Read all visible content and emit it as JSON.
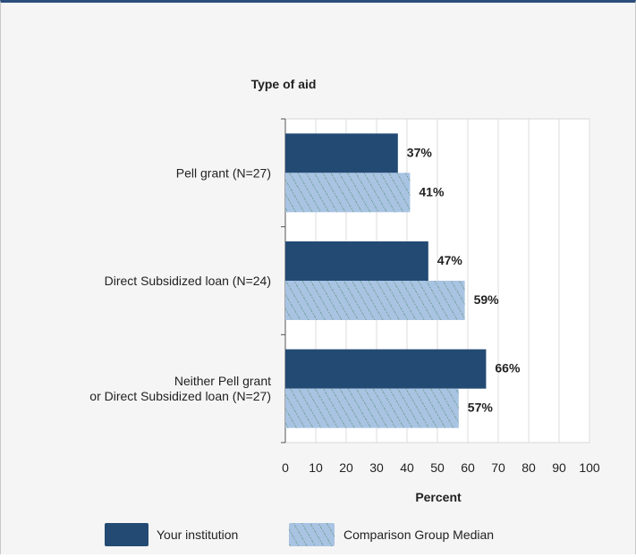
{
  "chart_data": {
    "type": "bar",
    "orientation": "horizontal",
    "title": "Type of aid",
    "xlabel": "Percent",
    "xlim": [
      0,
      100
    ],
    "x_ticks": [
      0,
      10,
      20,
      30,
      40,
      50,
      60,
      70,
      80,
      90,
      100
    ],
    "grid": true,
    "categories": [
      [
        "Pell grant (N=27)"
      ],
      [
        "Direct Subsidized loan (N=24)"
      ],
      [
        "Neither Pell grant",
        "or Direct Subsidized loan (N=27)"
      ]
    ],
    "series": [
      {
        "name": "Your institution",
        "values": [
          37,
          47,
          66
        ],
        "labels": [
          "37%",
          "47%",
          "66%"
        ],
        "color": "#234a73"
      },
      {
        "name": "Comparison Group Median",
        "values": [
          41,
          59,
          57
        ],
        "labels": [
          "41%",
          "59%",
          "57%"
        ],
        "color": "#a9c3e3",
        "hatch_color": "#4f8f6a"
      }
    ],
    "legend_position": "bottom"
  }
}
